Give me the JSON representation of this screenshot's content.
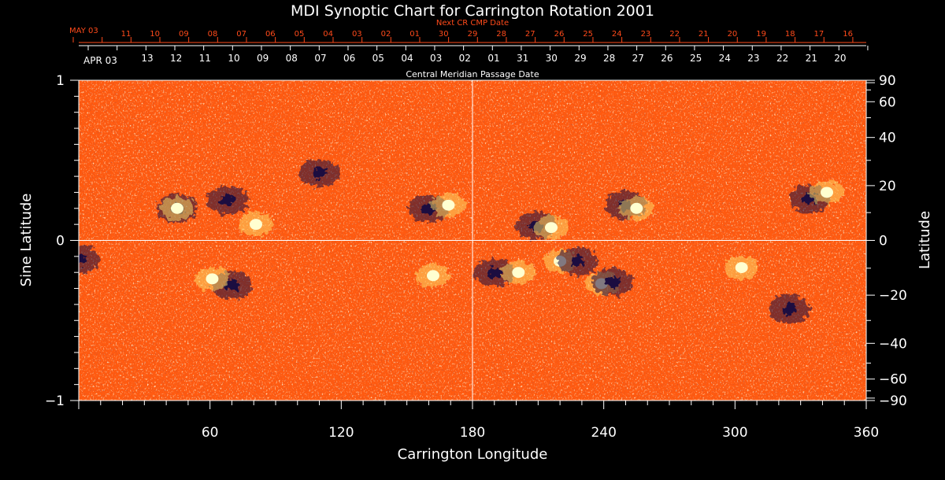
{
  "colors": {
    "background": "#000000",
    "map_base": "#ff5a10",
    "positive_polarity": "#ffffd0",
    "negative_polarity": "#1a1040",
    "next_cr_labels": "#ff4a1a",
    "axes": "#ffffff"
  },
  "chart_data": {
    "type": "heatmap",
    "title": "MDI Synoptic Chart for Carrington Rotation 2001",
    "xlabel": "Carrington Longitude",
    "ylabel_left": "Sine Latitude",
    "ylabel_right": "Latitude",
    "xlim": [
      0,
      360
    ],
    "ylim": [
      -1,
      1
    ],
    "x_ticks": [
      60,
      120,
      180,
      240,
      300,
      360
    ],
    "left_y_ticks": [
      {
        "value": 1,
        "label": "1"
      },
      {
        "value": 0,
        "label": "0"
      },
      {
        "value": -1,
        "label": "−1"
      }
    ],
    "right_y_ticks": [
      {
        "deg": 90,
        "label": "90"
      },
      {
        "deg": 60,
        "label": "60"
      },
      {
        "deg": 40,
        "label": "40"
      },
      {
        "deg": 20,
        "label": "20"
      },
      {
        "deg": 0,
        "label": "0"
      },
      {
        "deg": -20,
        "label": "−20"
      },
      {
        "deg": -40,
        "label": "−40"
      },
      {
        "deg": -60,
        "label": "−60"
      },
      {
        "deg": -90,
        "label": "−90"
      }
    ],
    "grid": {
      "longitude": 180,
      "sine_latitude": 0
    },
    "top_axis": {
      "caption_top": "Next CR CMP Date",
      "caption_bottom": "Central Meridian Passage Date",
      "next_cr_start": "MAY 03",
      "next_cr_labels": [
        "11",
        "10",
        "09",
        "08",
        "07",
        "06",
        "05",
        "04",
        "03",
        "02",
        "01",
        "30",
        "29",
        "28",
        "27",
        "26",
        "25",
        "24",
        "23",
        "22",
        "21",
        "20",
        "19",
        "18",
        "17",
        "16"
      ],
      "cmp_start": "APR 03",
      "cmp_labels": [
        "13",
        "12",
        "11",
        "10",
        "09",
        "08",
        "07",
        "06",
        "05",
        "04",
        "03",
        "02",
        "01",
        "31",
        "30",
        "29",
        "28",
        "27",
        "26",
        "25",
        "24",
        "23",
        "22",
        "21",
        "20"
      ]
    },
    "active_regions": [
      {
        "lon": 45,
        "sinlat": 0.2,
        "polarity": "mixed"
      },
      {
        "lon": 68,
        "sinlat": 0.25,
        "polarity": "negative"
      },
      {
        "lon": 81,
        "sinlat": 0.1,
        "polarity": "positive"
      },
      {
        "lon": 110,
        "sinlat": 0.42,
        "polarity": "negative"
      },
      {
        "lon": 160,
        "sinlat": 0.2,
        "polarity": "negative"
      },
      {
        "lon": 169,
        "sinlat": 0.22,
        "polarity": "positive"
      },
      {
        "lon": 209,
        "sinlat": 0.09,
        "polarity": "negative"
      },
      {
        "lon": 216,
        "sinlat": 0.08,
        "polarity": "positive"
      },
      {
        "lon": 250,
        "sinlat": 0.22,
        "polarity": "negative"
      },
      {
        "lon": 255,
        "sinlat": 0.2,
        "polarity": "positive"
      },
      {
        "lon": 334,
        "sinlat": 0.26,
        "polarity": "negative"
      },
      {
        "lon": 342,
        "sinlat": 0.3,
        "polarity": "positive"
      },
      {
        "lon": 70,
        "sinlat": -0.28,
        "polarity": "negative"
      },
      {
        "lon": 61,
        "sinlat": -0.24,
        "polarity": "positive"
      },
      {
        "lon": 162,
        "sinlat": -0.22,
        "polarity": "positive"
      },
      {
        "lon": 190,
        "sinlat": -0.2,
        "polarity": "negative"
      },
      {
        "lon": 201,
        "sinlat": -0.2,
        "polarity": "positive"
      },
      {
        "lon": 220,
        "sinlat": -0.13,
        "polarity": "positive"
      },
      {
        "lon": 228,
        "sinlat": -0.13,
        "polarity": "negative"
      },
      {
        "lon": 239,
        "sinlat": -0.27,
        "polarity": "positive"
      },
      {
        "lon": 244,
        "sinlat": -0.26,
        "polarity": "negative"
      },
      {
        "lon": 303,
        "sinlat": -0.17,
        "polarity": "positive"
      },
      {
        "lon": 325,
        "sinlat": -0.43,
        "polarity": "negative"
      },
      {
        "lon": 0,
        "sinlat": -0.12,
        "polarity": "negative"
      }
    ]
  }
}
